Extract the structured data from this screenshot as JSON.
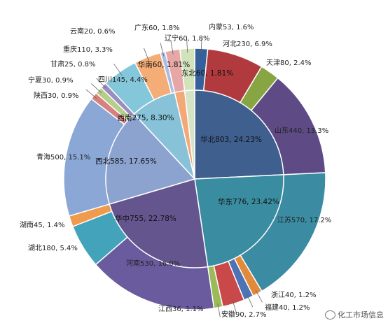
{
  "chart_data": {
    "type": "pie",
    "title": "",
    "rings": [
      {
        "name": "region",
        "slices": [
          {
            "label": "华北",
            "value": 803,
            "percent": "24.23%",
            "color": "#3f5f8e"
          },
          {
            "label": "华东",
            "value": 776,
            "percent": "23.42%",
            "color": "#3a8da0"
          },
          {
            "label": "华中",
            "value": 755,
            "percent": "22.78%",
            "color": "#65558f"
          },
          {
            "label": "西北",
            "value": 585,
            "percent": "17.65%",
            "color": "#8ca3cf"
          },
          {
            "label": "西南",
            "value": 275,
            "percent": "8.30%",
            "color": "#87c2d8"
          },
          {
            "label": "华南",
            "value": 60,
            "percent": "1.81%",
            "color": "#f3a878"
          },
          {
            "label": "东北",
            "value": 60,
            "percent": "1.81%",
            "color": "#d6e4c5"
          }
        ]
      },
      {
        "name": "province",
        "slices": [
          {
            "label": "内蒙",
            "value": 53,
            "percent": "1.6%",
            "color": "#36609a"
          },
          {
            "label": "河北",
            "value": 230,
            "percent": "6.9%",
            "color": "#b03a3d"
          },
          {
            "label": "天津",
            "value": 80,
            "percent": "2.4%",
            "color": "#88a544"
          },
          {
            "label": "山东",
            "value": 440,
            "percent": "13.3%",
            "color": "#5e4b86"
          },
          {
            "label": "江苏",
            "value": 570,
            "percent": "17.2%",
            "color": "#3b8ca2"
          },
          {
            "label": "浙江",
            "value": 40,
            "percent": "1.2%",
            "color": "#e28a3c"
          },
          {
            "label": "福建",
            "value": 40,
            "percent": "1.2%",
            "color": "#4d73b5"
          },
          {
            "label": "安徽",
            "value": 90,
            "percent": "2.7%",
            "color": "#c9484a"
          },
          {
            "label": "江西",
            "value": 36,
            "percent": "1.1%",
            "color": "#9bbb59"
          },
          {
            "label": "河南",
            "value": 530,
            "percent": "16.0%",
            "color": "#6a5a9e"
          },
          {
            "label": "湖北",
            "value": 180,
            "percent": "5.4%",
            "color": "#42a3ba"
          },
          {
            "label": "湖南",
            "value": 45,
            "percent": "1.4%",
            "color": "#f09a4c"
          },
          {
            "label": "青海",
            "value": 500,
            "percent": "15.1%",
            "color": "#8aa7d5"
          },
          {
            "label": "陕西",
            "value": 30,
            "percent": "0.9%",
            "color": "#d6807f"
          },
          {
            "label": "宁夏",
            "value": 30,
            "percent": "0.9%",
            "color": "#b5cf8a"
          },
          {
            "label": "甘肃",
            "value": 25,
            "percent": "0.8%",
            "color": "#9b8cc1"
          },
          {
            "label": "四川",
            "value": 145,
            "percent": "4.4%",
            "color": "#84c6da"
          },
          {
            "label": "重庆",
            "value": 110,
            "percent": "3.3%",
            "color": "#f5ad78"
          },
          {
            "label": "云南",
            "value": 20,
            "percent": "0.6%",
            "color": "#a9bde3"
          },
          {
            "label": "广东",
            "value": 60,
            "percent": "1.8%",
            "color": "#e6a7a6"
          },
          {
            "label": "辽宁",
            "value": 60,
            "percent": "1.8%",
            "color": "#d2e3bc"
          }
        ]
      }
    ],
    "legend": "none"
  },
  "watermark": {
    "text": "化工市场信息",
    "icon": "wechat-icon"
  }
}
